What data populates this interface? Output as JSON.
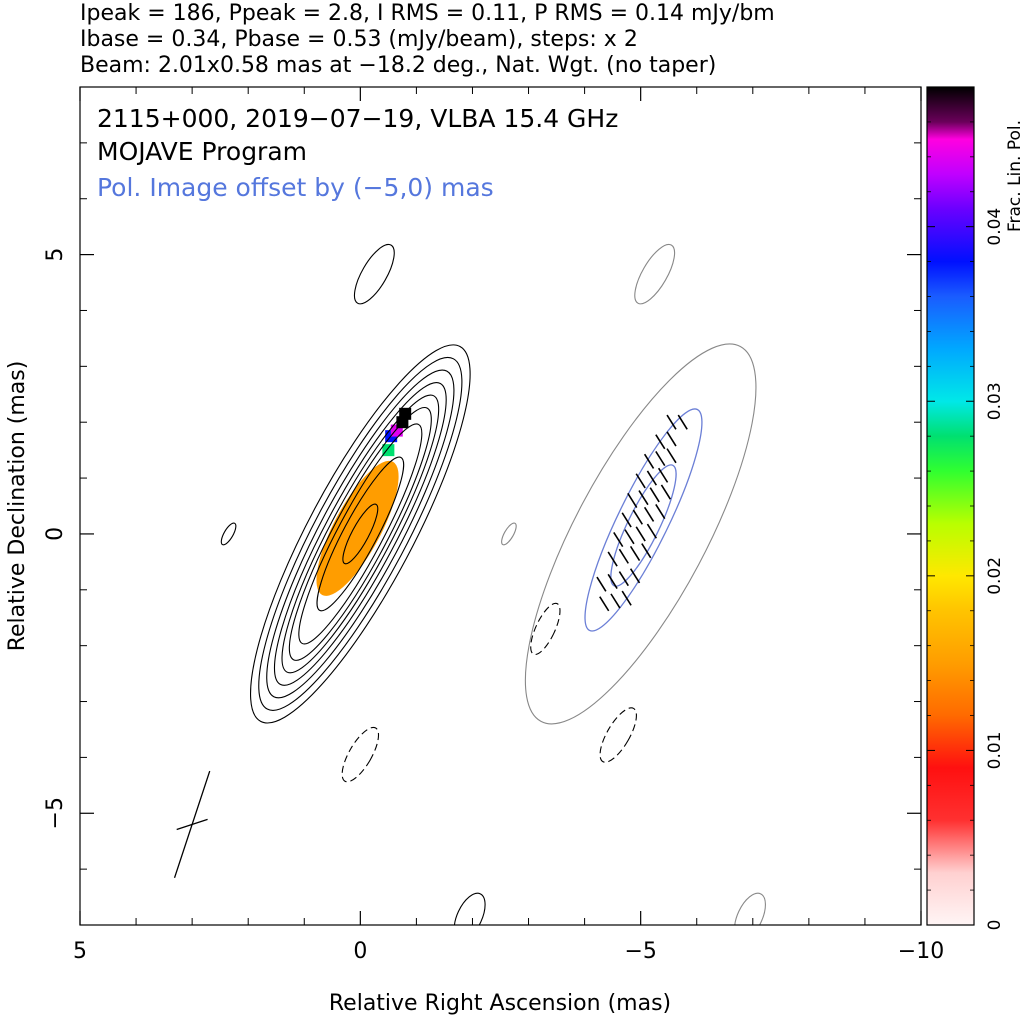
{
  "header": {
    "line1": "Ipeak = 186, Ppeak = 2.8, I RMS = 0.11, P RMS = 0.14 mJy/bm",
    "line2": "Ibase = 0.34, Pbase = 0.53 (mJy/beam), steps: x 2",
    "line3": "Beam: 2.01x0.58 mas at −18.2 deg., Nat. Wgt. (no taper)"
  },
  "chart_data": {
    "type": "contour",
    "source": "2115+000, 2019−07−19, VLBA 15.4 GHz",
    "program": "MOJAVE Program",
    "offset_note": "Pol. Image offset by (−5,0) mas",
    "xlabel": "Relative Right Ascension (mas)",
    "ylabel": "Relative Declination (mas)",
    "xlim": [
      5,
      -10
    ],
    "ylim": [
      -7,
      8
    ],
    "xticks": [
      5,
      0,
      -5,
      -10
    ],
    "xtick_labels": [
      "5",
      "0",
      "−5",
      "−10"
    ],
    "yticks": [
      5,
      0,
      -5
    ],
    "ytick_labels": [
      "5",
      "0",
      "−5"
    ],
    "colorbar": {
      "label": "Frac. Lin. Pol.",
      "range": [
        0,
        0.048
      ],
      "ticks": [
        0,
        0.01,
        0.02,
        0.03,
        0.04
      ],
      "tick_labels": [
        "0",
        "0.01",
        "0.02",
        "0.03",
        "0.04"
      ]
    },
    "stokes_I": {
      "center": [
        0,
        0
      ],
      "pa_deg": 28,
      "contours": [
        {
          "a": 3.8,
          "b": 0.93
        },
        {
          "a": 3.55,
          "b": 0.82
        },
        {
          "a": 3.3,
          "b": 0.72
        },
        {
          "a": 3.05,
          "b": 0.63
        },
        {
          "a": 2.8,
          "b": 0.55
        },
        {
          "a": 2.55,
          "b": 0.48
        },
        {
          "a": 2.22,
          "b": 0.4
        },
        {
          "a": 1.55,
          "b": 0.3
        },
        {
          "a": 0.6,
          "b": 0.15
        }
      ]
    },
    "stokes_I_offset": {
      "center": [
        -5,
        0
      ],
      "pa_deg": 28,
      "contours": [
        {
          "a": 3.8,
          "b": 1.17
        }
      ]
    },
    "polarized_contours": [
      {
        "center": [
          -5.05,
          0.25
        ],
        "a": 2.2,
        "b": 0.45,
        "pa_deg": 26
      },
      {
        "center": [
          -5.05,
          0.15
        ],
        "a": 1.2,
        "b": 0.28,
        "pa_deg": 26
      }
    ],
    "small_positive_contours": [
      {
        "center": [
          -0.25,
          4.65
        ],
        "a": 0.6,
        "b": 0.22,
        "pa_deg": 30
      },
      {
        "center": [
          -5.25,
          4.65
        ],
        "a": 0.6,
        "b": 0.22,
        "pa_deg": 30
      },
      {
        "center": [
          2.35,
          0.0
        ],
        "a": 0.22,
        "b": 0.08,
        "pa_deg": 30
      },
      {
        "center": [
          -2.65,
          0.0
        ],
        "a": 0.22,
        "b": 0.08,
        "pa_deg": 30
      },
      {
        "center": [
          -1.95,
          -6.85
        ],
        "a": 0.45,
        "b": 0.22,
        "pa_deg": 25
      },
      {
        "center": [
          -6.95,
          -6.85
        ],
        "a": 0.45,
        "b": 0.22,
        "pa_deg": 25
      }
    ],
    "negative_contours": [
      {
        "center": [
          -3.3,
          -1.7
        ],
        "a": 0.5,
        "b": 0.17,
        "pa_deg": 25
      },
      {
        "center": [
          0.0,
          -3.95
        ],
        "a": 0.55,
        "b": 0.2,
        "pa_deg": 30
      },
      {
        "center": [
          -4.6,
          -3.6
        ],
        "a": 0.55,
        "b": 0.2,
        "pa_deg": 30
      }
    ],
    "frac_pol_region": {
      "center": [
        0.05,
        0.1
      ],
      "a": 1.35,
      "b": 0.42,
      "pa_deg": 28,
      "typical_value": 0.015,
      "upper_tip": [
        {
          "ra": -0.5,
          "dec": 1.5,
          "value": 0.028
        },
        {
          "ra": -0.55,
          "dec": 1.75,
          "value": 0.038
        },
        {
          "ra": -0.65,
          "dec": 1.85,
          "value": 0.044
        },
        {
          "ra": -0.75,
          "dec": 2.0,
          "value": 0.048
        },
        {
          "ra": -0.8,
          "dec": 2.15,
          "value": 0.048
        }
      ]
    },
    "evpa_vectors": {
      "angle_deg": -58,
      "length_mas": 0.3,
      "positions": [
        [
          -4.35,
          -1.25
        ],
        [
          -4.55,
          -1.2
        ],
        [
          -4.75,
          -1.15
        ],
        [
          -4.3,
          -0.9
        ],
        [
          -4.5,
          -0.85
        ],
        [
          -4.7,
          -0.8
        ],
        [
          -4.9,
          -0.75
        ],
        [
          -4.5,
          -0.45
        ],
        [
          -4.7,
          -0.4
        ],
        [
          -4.9,
          -0.35
        ],
        [
          -5.1,
          -0.3
        ],
        [
          -4.6,
          -0.1
        ],
        [
          -4.8,
          -0.05
        ],
        [
          -5.0,
          0.0
        ],
        [
          -5.2,
          0.05
        ],
        [
          -4.75,
          0.25
        ],
        [
          -4.95,
          0.3
        ],
        [
          -5.15,
          0.35
        ],
        [
          -5.35,
          0.4
        ],
        [
          -4.85,
          0.6
        ],
        [
          -5.05,
          0.65
        ],
        [
          -5.25,
          0.7
        ],
        [
          -5.45,
          0.75
        ],
        [
          -5.0,
          0.95
        ],
        [
          -5.2,
          1.0
        ],
        [
          -5.4,
          1.05
        ],
        [
          -5.15,
          1.3
        ],
        [
          -5.35,
          1.35
        ],
        [
          -5.55,
          1.4
        ],
        [
          -5.35,
          1.65
        ],
        [
          -5.55,
          1.7
        ],
        [
          -5.55,
          2.0
        ],
        [
          -5.75,
          2.0
        ]
      ]
    },
    "beam": {
      "center": [
        3.0,
        -5.2
      ],
      "major_mas": 2.01,
      "minor_mas": 0.58,
      "pa_deg": -18.2
    }
  },
  "colors": {
    "positive_contour": "#000000",
    "offset_contour": "#888888",
    "pol_contour": "#6b7fd6",
    "annotation_blue": "#5577dd"
  }
}
